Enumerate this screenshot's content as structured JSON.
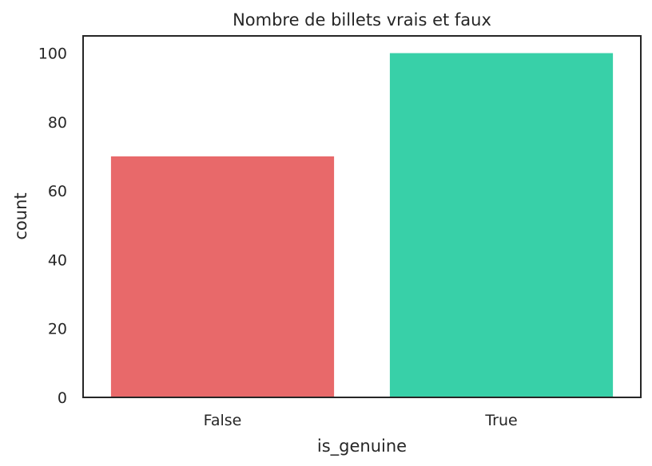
{
  "chart_data": {
    "type": "bar",
    "title": "Nombre de billets vrais et faux",
    "xlabel": "is_genuine",
    "ylabel": "count",
    "categories": [
      "False",
      "True"
    ],
    "values": [
      70,
      100
    ],
    "colors": [
      "#e8696a",
      "#38d0a8"
    ],
    "ylim": [
      0,
      105
    ],
    "yticks": [
      0,
      20,
      40,
      60,
      80,
      100
    ],
    "grid": false,
    "legend": "none"
  }
}
